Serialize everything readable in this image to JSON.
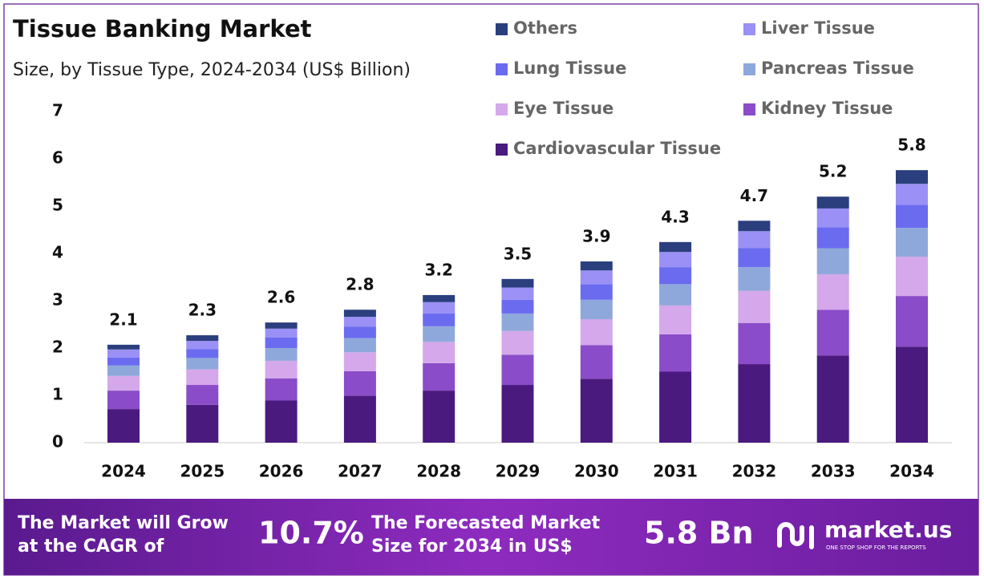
{
  "chart_data": {
    "type": "stacked-bar",
    "title": "Tissue Banking Market",
    "subtitle": "Size, by Tissue Type, 2024-2034 (US$ Billion)",
    "categories": [
      "2024",
      "2025",
      "2026",
      "2027",
      "2028",
      "2029",
      "2030",
      "2031",
      "2032",
      "2033",
      "2034"
    ],
    "series": [
      {
        "name": "Cardiovascular Tissue",
        "color": "#4a1a7f",
        "values": [
          0.71,
          0.8,
          0.89,
          0.99,
          1.1,
          1.22,
          1.35,
          1.5,
          1.66,
          1.84,
          2.03
        ]
      },
      {
        "name": "Kidney Tissue",
        "color": "#8a4cc8",
        "values": [
          0.39,
          0.42,
          0.47,
          0.52,
          0.58,
          0.64,
          0.71,
          0.79,
          0.87,
          0.97,
          1.07
        ]
      },
      {
        "name": "Eye Tissue",
        "color": "#d4a8ea",
        "values": [
          0.31,
          0.33,
          0.37,
          0.4,
          0.45,
          0.5,
          0.55,
          0.61,
          0.68,
          0.75,
          0.83
        ]
      },
      {
        "name": "Pancreas Tissue",
        "color": "#8fa8db",
        "values": [
          0.22,
          0.24,
          0.27,
          0.3,
          0.33,
          0.37,
          0.41,
          0.45,
          0.5,
          0.55,
          0.61
        ]
      },
      {
        "name": "Lung Tissue",
        "color": "#6b6bf0",
        "values": [
          0.17,
          0.19,
          0.22,
          0.24,
          0.27,
          0.29,
          0.33,
          0.36,
          0.4,
          0.44,
          0.49
        ]
      },
      {
        "name": "Liver Tissue",
        "color": "#9a90f5",
        "values": [
          0.17,
          0.17,
          0.19,
          0.21,
          0.24,
          0.26,
          0.29,
          0.32,
          0.36,
          0.4,
          0.44
        ]
      },
      {
        "name": "Others",
        "color": "#2b3f7e",
        "values": [
          0.1,
          0.12,
          0.13,
          0.15,
          0.15,
          0.18,
          0.19,
          0.21,
          0.22,
          0.25,
          0.29
        ]
      }
    ],
    "totals": [
      2.1,
      2.3,
      2.6,
      2.8,
      3.2,
      3.5,
      3.9,
      4.3,
      4.7,
      5.2,
      5.8
    ],
    "ylim": [
      0,
      7
    ],
    "yticks": [
      0,
      1,
      2,
      3,
      4,
      5,
      6,
      7
    ],
    "grid": false
  },
  "footer": {
    "cagr_text": [
      "The Market will Grow",
      "at the CAGR of"
    ],
    "cagr": "10.7%",
    "forecast_text": [
      "The Forecasted Market",
      "Size for 2034 in US$"
    ],
    "forecast": "5.8 Bn",
    "brand": "market.us",
    "tagline": "ONE STOP SHOP FOR THE REPORTS"
  }
}
